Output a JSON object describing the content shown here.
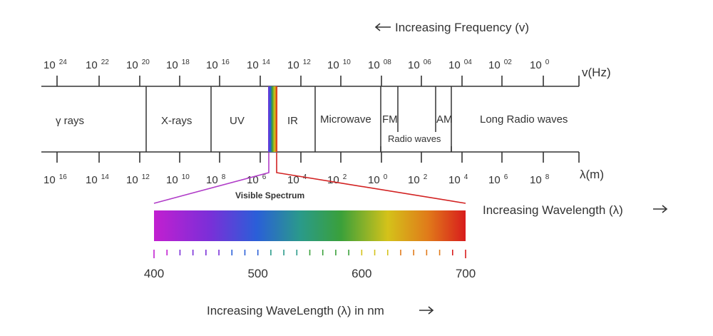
{
  "frequency_direction_label": "Increasing Frequency (v)",
  "frequency_axis_label": "v(Hz)",
  "wavelength_axis_label": "λ(m)",
  "wavelength_direction_label": "Increasing Wavelength (λ)",
  "nm_direction_label": "Increasing WaveLength (λ) in nm",
  "visible_spectrum_label": "Visible Spectrum",
  "frequency_ticks": [
    {
      "base": "10",
      "exp": "24"
    },
    {
      "base": "10",
      "exp": "22"
    },
    {
      "base": "10",
      "exp": "20"
    },
    {
      "base": "10",
      "exp": "18"
    },
    {
      "base": "10",
      "exp": "16"
    },
    {
      "base": "10",
      "exp": "14"
    },
    {
      "base": "10",
      "exp": "12"
    },
    {
      "base": "10",
      "exp": "10"
    },
    {
      "base": "10",
      "exp": "08"
    },
    {
      "base": "10",
      "exp": "06"
    },
    {
      "base": "10",
      "exp": "04"
    },
    {
      "base": "10",
      "exp": "02"
    },
    {
      "base": "10",
      "exp": "0"
    }
  ],
  "wavelength_ticks": [
    {
      "base": "10",
      "exp": "16"
    },
    {
      "base": "10",
      "exp": "14"
    },
    {
      "base": "10",
      "exp": "12"
    },
    {
      "base": "10",
      "exp": "10"
    },
    {
      "base": "10",
      "exp": "8"
    },
    {
      "base": "10",
      "exp": "6"
    },
    {
      "base": "10",
      "exp": "4"
    },
    {
      "base": "10",
      "exp": "2"
    },
    {
      "base": "10",
      "exp": "0"
    },
    {
      "base": "10",
      "exp": "2"
    },
    {
      "base": "10",
      "exp": "4"
    },
    {
      "base": "10",
      "exp": "6"
    },
    {
      "base": "10",
      "exp": "8"
    }
  ],
  "bands": [
    {
      "label": "γ rays"
    },
    {
      "label": "X-rays"
    },
    {
      "label": "UV"
    },
    {
      "label": "IR"
    },
    {
      "label": "Microwave"
    },
    {
      "label": "FM"
    },
    {
      "label": "AM"
    },
    {
      "label": "Long Radio waves"
    }
  ],
  "radio_waves_label": "Radio waves",
  "nm_scale": {
    "min": 400,
    "max": 700,
    "labels": [
      "400",
      "500",
      "600",
      "700"
    ]
  },
  "colors": {
    "axis": "#333333",
    "freq_marker": "#b03cc8",
    "wave_marker": "#d22222",
    "spectrum_stops": [
      "#c21fd0",
      "#7a2fd8",
      "#2a5fd8",
      "#2a9a8a",
      "#3aa03a",
      "#d4c21a",
      "#e07a1a",
      "#d81c1c"
    ]
  }
}
